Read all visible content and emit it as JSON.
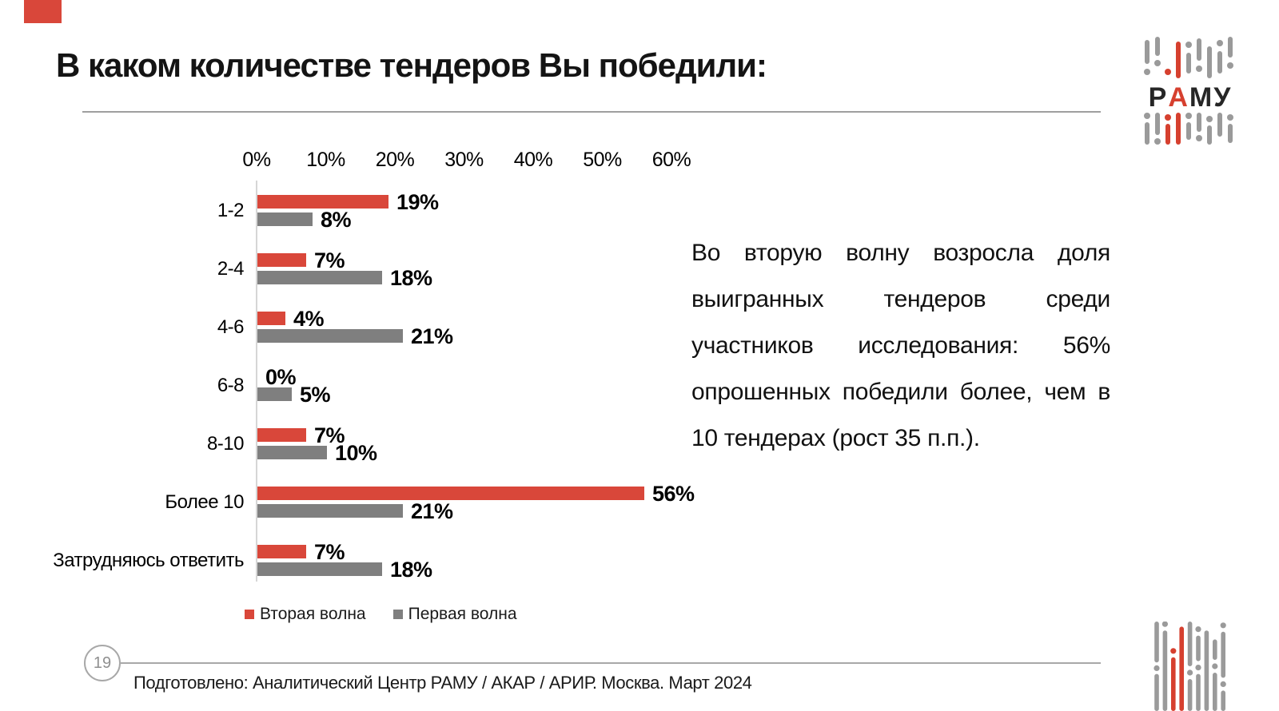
{
  "slide": {
    "title": "В каком количестве тендеров Вы победили:",
    "page_number": "19",
    "footer": "Подготовлено: Аналитический Центр РАМУ / АКАР / АРИР. Москва. Март 2024",
    "commentary": "Во вторую волну возросла доля выигранных тендеров среди участников исследования: 56% опрошенных победили более, чем в 10 тендерах (рост 35 п.п.).",
    "logo": {
      "p1": "Р",
      "p2": "А",
      "p3": "МУ"
    }
  },
  "colors": {
    "accent_red": "#d9473a",
    "bar_gray": "#7f7f7f",
    "logo_red": "#d6402f",
    "logo_gray": "#9a9a9a",
    "rule_gray": "#a8a8a8",
    "axis_gray": "#d6d6d6"
  },
  "chart_data": {
    "type": "bar",
    "orientation": "horizontal",
    "title": "",
    "categories": [
      "1-2",
      "2-4",
      "4-6",
      "6-8",
      "8-10",
      "Более 10",
      "Затрудняюсь ответить"
    ],
    "series": [
      {
        "name": "Вторая волна",
        "color": "#d9473a",
        "values": [
          19,
          7,
          4,
          0,
          7,
          56,
          7
        ]
      },
      {
        "name": "Первая волна",
        "color": "#7f7f7f",
        "values": [
          8,
          18,
          21,
          5,
          10,
          21,
          18
        ]
      }
    ],
    "value_suffix": "%",
    "x_ticks": [
      "0%",
      "10%",
      "20%",
      "30%",
      "40%",
      "50%",
      "60%"
    ],
    "xlim": [
      0,
      60
    ],
    "grid": false,
    "data_labels": true,
    "legend_position": "bottom"
  }
}
